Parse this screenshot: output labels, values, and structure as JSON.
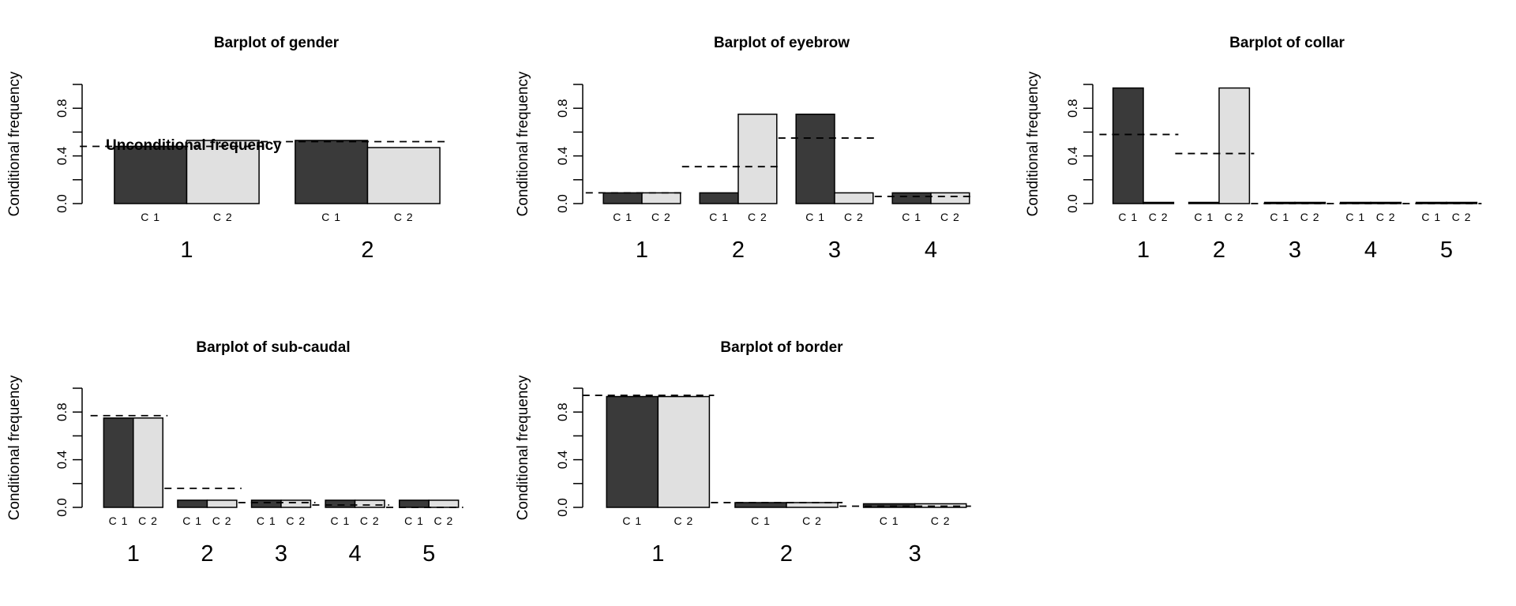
{
  "colors": {
    "c1": "#3a3a3a",
    "c2": "#e0e0e0",
    "stroke": "#000000"
  },
  "chart_data": [
    {
      "type": "bar",
      "title": "Barplot of gender",
      "ylabel": "Conditional frequency",
      "ylim": [
        0,
        1
      ],
      "yticks": [
        "0.0",
        "0.4",
        "0.8"
      ],
      "categories": [
        "1",
        "2"
      ],
      "group_labels": [
        "C 1",
        "C 2"
      ],
      "series": [
        {
          "name": "C 1",
          "values": [
            0.48,
            0.53
          ]
        },
        {
          "name": "C 2",
          "values": [
            0.53,
            0.47
          ]
        }
      ],
      "unconditional": [
        0.48,
        0.52
      ],
      "annotation": "Unconditional frequency"
    },
    {
      "type": "bar",
      "title": "Barplot of eyebrow",
      "ylabel": "Conditional frequency",
      "ylim": [
        0,
        1
      ],
      "yticks": [
        "0.0",
        "0.4",
        "0.8"
      ],
      "categories": [
        "1",
        "2",
        "3",
        "4"
      ],
      "group_labels": [
        "C 1",
        "C 2"
      ],
      "series": [
        {
          "name": "C 1",
          "values": [
            0.09,
            0.09,
            0.75,
            0.09
          ]
        },
        {
          "name": "C 2",
          "values": [
            0.09,
            0.75,
            0.09,
            0.09
          ]
        }
      ],
      "unconditional": [
        0.09,
        0.31,
        0.55,
        0.06
      ]
    },
    {
      "type": "bar",
      "title": "Barplot of collar",
      "ylabel": "Conditional frequency",
      "ylim": [
        0,
        1
      ],
      "yticks": [
        "0.0",
        "0.4",
        "0.8"
      ],
      "categories": [
        "1",
        "2",
        "3",
        "4",
        "5"
      ],
      "group_labels": [
        "C 1",
        "C 2"
      ],
      "series": [
        {
          "name": "C 1",
          "values": [
            0.97,
            0.01,
            0.01,
            0.01,
            0.01
          ]
        },
        {
          "name": "C 2",
          "values": [
            0.01,
            0.97,
            0.01,
            0.01,
            0.01
          ]
        }
      ],
      "unconditional": [
        0.58,
        0.42,
        0.0,
        0.0,
        0.0
      ]
    },
    {
      "type": "bar",
      "title": "Barplot of sub-caudal",
      "ylabel": "Conditional frequency",
      "ylim": [
        0,
        1
      ],
      "yticks": [
        "0.0",
        "0.4",
        "0.8"
      ],
      "categories": [
        "1",
        "2",
        "3",
        "4",
        "5"
      ],
      "group_labels": [
        "C 1",
        "C 2"
      ],
      "series": [
        {
          "name": "C 1",
          "values": [
            0.75,
            0.06,
            0.06,
            0.06,
            0.06
          ]
        },
        {
          "name": "C 2",
          "values": [
            0.75,
            0.06,
            0.06,
            0.06,
            0.06
          ]
        }
      ],
      "unconditional": [
        0.77,
        0.16,
        0.04,
        0.02,
        0.0
      ]
    },
    {
      "type": "bar",
      "title": "Barplot of border",
      "ylabel": "Conditional frequency",
      "ylim": [
        0,
        1
      ],
      "yticks": [
        "0.0",
        "0.4",
        "0.8"
      ],
      "categories": [
        "1",
        "2",
        "3"
      ],
      "group_labels": [
        "C 1",
        "C 2"
      ],
      "series": [
        {
          "name": "C 1",
          "values": [
            0.93,
            0.04,
            0.03
          ]
        },
        {
          "name": "C 2",
          "values": [
            0.93,
            0.04,
            0.03
          ]
        }
      ],
      "unconditional": [
        0.94,
        0.04,
        0.01
      ]
    }
  ]
}
